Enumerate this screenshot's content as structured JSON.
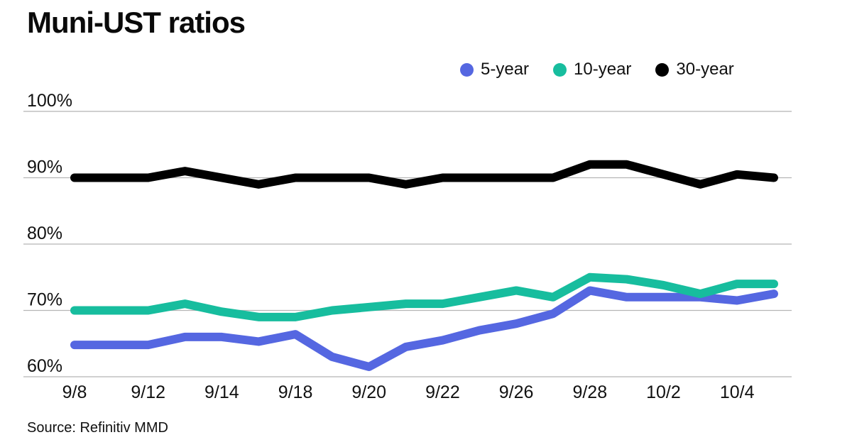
{
  "page": {
    "title": "Muni-UST ratios",
    "source": "Source: Refinitiv MMD"
  },
  "legend": {
    "items": [
      {
        "label": "5-year",
        "color": "#5567e1"
      },
      {
        "label": "10-year",
        "color": "#17bd9e"
      },
      {
        "label": "30-year",
        "color": "#000000"
      }
    ]
  },
  "chart_data": {
    "type": "line",
    "title": "Muni-UST ratios",
    "x": [
      "9/8",
      "9/11",
      "9/12",
      "9/13",
      "9/14",
      "9/15",
      "9/18",
      "9/19",
      "9/20",
      "9/21",
      "9/22",
      "9/25",
      "9/26",
      "9/27",
      "9/28",
      "9/29",
      "10/2",
      "10/3",
      "10/4",
      "10/5"
    ],
    "x_tick_indices": [
      0,
      2,
      4,
      6,
      8,
      10,
      12,
      14,
      16,
      18
    ],
    "x_tick_labels": [
      "9/8",
      "9/12",
      "9/14",
      "9/18",
      "9/20",
      "9/22",
      "9/26",
      "9/28",
      "10/2",
      "10/4"
    ],
    "y_axis": {
      "min": 60,
      "max": 100,
      "tick_step": 10,
      "tick_values": [
        100,
        90,
        80,
        70,
        60
      ],
      "tick_labels": [
        "100%",
        "90%",
        "80%",
        "70%",
        "60%"
      ],
      "unit": "%"
    },
    "grid": true,
    "legend_position": "top-right",
    "series": [
      {
        "name": "5-year",
        "color": "#5567e1",
        "values": [
          64.8,
          64.8,
          64.8,
          66,
          66,
          65.3,
          66.4,
          63,
          61.5,
          64.5,
          65.5,
          67,
          68,
          69.5,
          73,
          72,
          72,
          72,
          71.5,
          72.5
        ]
      },
      {
        "name": "10-year",
        "color": "#17bd9e",
        "values": [
          70,
          70,
          70,
          71,
          69.8,
          69,
          69,
          70,
          70.5,
          71,
          71,
          72,
          73,
          72,
          75,
          74.7,
          73.8,
          72.5,
          74,
          74
        ]
      },
      {
        "name": "30-year",
        "color": "#000000",
        "values": [
          90,
          90,
          90,
          91,
          90,
          89,
          90,
          90,
          90,
          89,
          90,
          90,
          90,
          90,
          92,
          92,
          90.5,
          89,
          90.5,
          90
        ]
      }
    ],
    "source": "Source: Refinitiv MMD"
  }
}
